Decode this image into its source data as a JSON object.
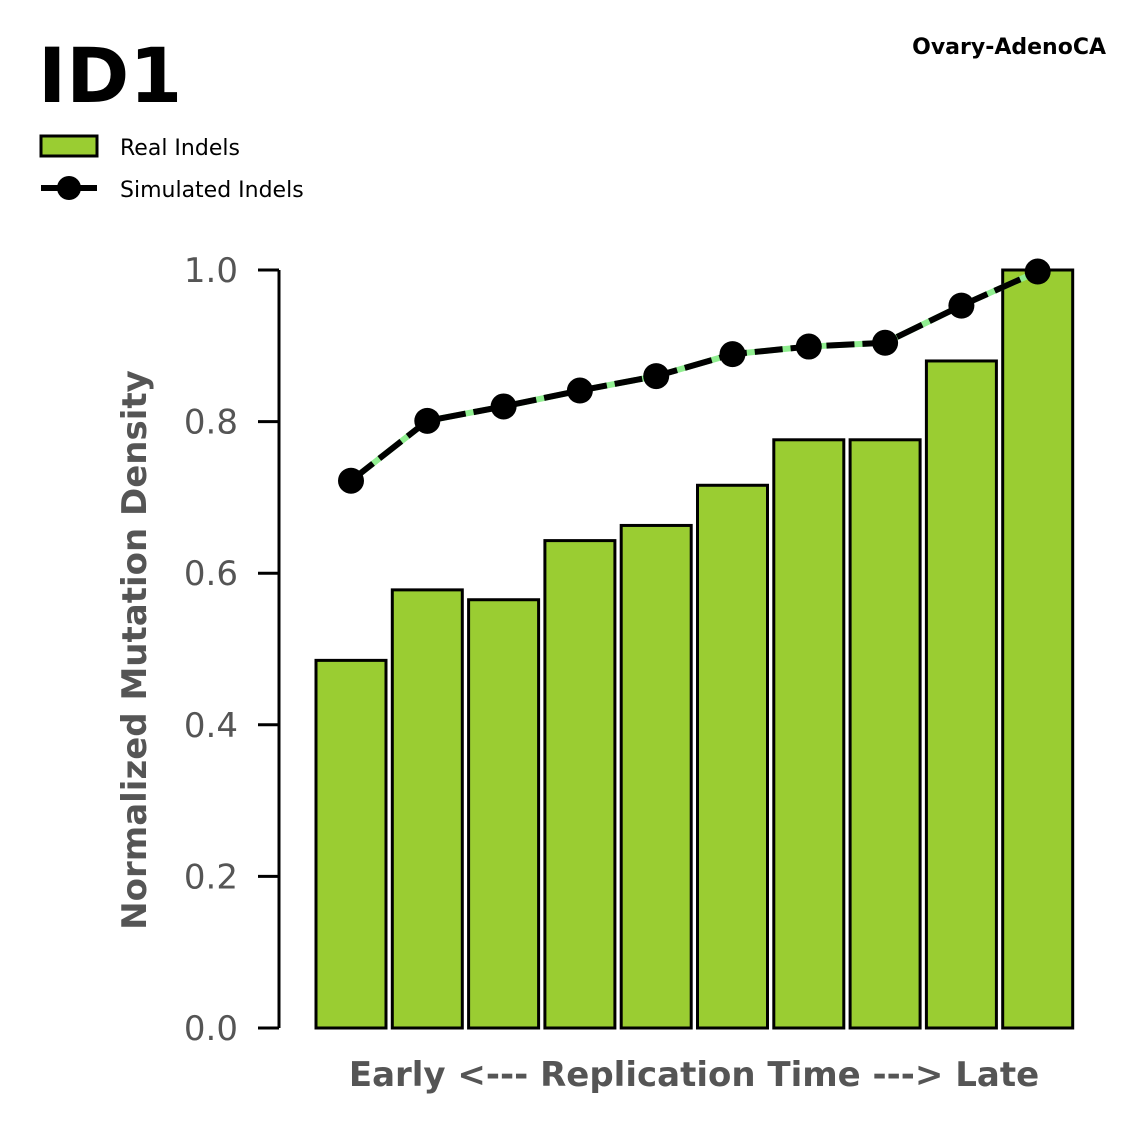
{
  "title": "ID1",
  "subtitle": "Ovary-AdenoCA",
  "colors": {
    "bar_fill": "#9ACD32",
    "bar_edge": "#000000",
    "line": "#000000",
    "line_dash": "#90EE90",
    "marker": "#000000"
  },
  "chart_data": {
    "type": "bar",
    "xlabel": "Early <--- Replication Time ---> Late",
    "ylabel": "Normalized Mutation Density",
    "ylim": [
      0,
      1.0
    ],
    "yticks": [
      "0.0",
      "0.2",
      "0.4",
      "0.6",
      "0.8",
      "1.0"
    ],
    "grid": false,
    "legend_position": "top-left",
    "series": [
      {
        "name": "Real Indels",
        "type": "bar",
        "values": [
          0.485,
          0.578,
          0.565,
          0.643,
          0.663,
          0.716,
          0.776,
          0.776,
          0.88,
          1.0
        ]
      },
      {
        "name": "Simulated Indels",
        "type": "line",
        "values": [
          0.722,
          0.801,
          0.82,
          0.841,
          0.86,
          0.889,
          0.899,
          0.904,
          0.953,
          0.998
        ]
      }
    ]
  }
}
